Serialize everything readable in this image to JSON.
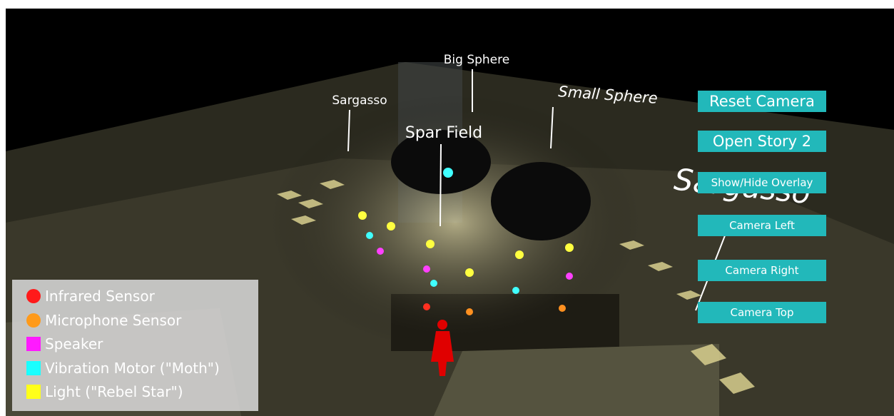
{
  "scene_labels": [
    "Big Sphere",
    "Sargasso",
    "Spar Field",
    "Small Sphere",
    "Sargasso"
  ],
  "buttons": [
    "Reset Camera",
    "Open Story 2",
    "Show/Hide Overlay",
    "Camera Left",
    "Camera Right",
    "Camera Top"
  ],
  "legend": [
    {
      "label": "Infrared Sensor",
      "color": "#ff1a1a",
      "shape": "circle"
    },
    {
      "label": "Microphone Sensor",
      "color": "#ff9a1a",
      "shape": "circle"
    },
    {
      "label": "Speaker",
      "color": "#ff1aff",
      "shape": "square"
    },
    {
      "label": "Vibration Motor (\"Moth\")",
      "color": "#1affff",
      "shape": "square"
    },
    {
      "label": "Light (\"Rebel Star\")",
      "color": "#ffff1a",
      "shape": "square"
    }
  ]
}
